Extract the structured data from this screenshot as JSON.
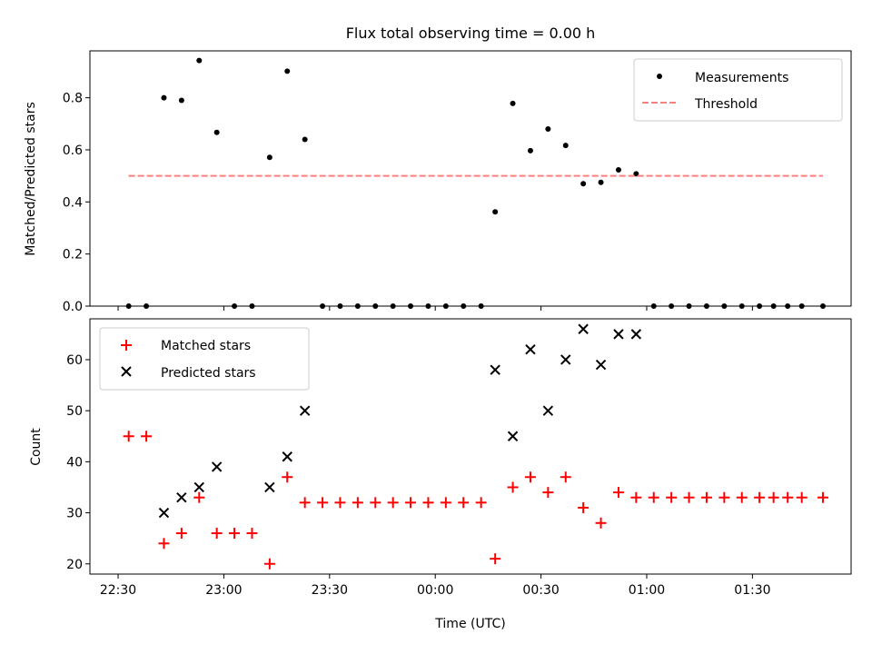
{
  "title": "Flux total observing time = 0.00 h",
  "chart_data": [
    {
      "type": "scatter",
      "ylabel": "Matched/Predicted stars",
      "ylim": [
        0,
        0.98
      ],
      "yticks": [
        0.0,
        0.2,
        0.4,
        0.6,
        0.8
      ],
      "ytick_labels": [
        "0.0",
        "0.2",
        "0.4",
        "0.6",
        "0.8"
      ],
      "legend_position": "upper-right",
      "series": [
        {
          "name": "Measurements",
          "marker": "dot",
          "color": "#000000",
          "x": [
            "22:33",
            "22:38",
            "22:43",
            "22:48",
            "22:53",
            "22:58",
            "23:03",
            "23:08",
            "23:13",
            "23:18",
            "23:23",
            "23:28",
            "23:33",
            "23:38",
            "23:43",
            "23:48",
            "23:53",
            "23:58",
            "00:03",
            "00:08",
            "00:13",
            "00:17",
            "00:22",
            "00:27",
            "00:32",
            "00:37",
            "00:42",
            "00:47",
            "00:52",
            "00:57",
            "01:02",
            "01:07",
            "01:12",
            "01:17",
            "01:22",
            "01:27",
            "01:32",
            "01:36",
            "01:40",
            "01:44",
            "01:50"
          ],
          "y": [
            0,
            0,
            0.8,
            0.79,
            0.943,
            0.667,
            0,
            0,
            0.571,
            0.902,
            0.64,
            0,
            0,
            0,
            0,
            0,
            0,
            0,
            0,
            0,
            0,
            0.362,
            0.778,
            0.597,
            0.68,
            0.617,
            0.47,
            0.475,
            0.523,
            0.508,
            0,
            0,
            0,
            0,
            0,
            0,
            0,
            0,
            0,
            0,
            0
          ]
        },
        {
          "name": "Threshold",
          "marker": "dashed-line",
          "color": "#ff7f7f",
          "x": [
            "22:33",
            "01:50"
          ],
          "y": [
            0.5,
            0.5
          ]
        }
      ]
    },
    {
      "type": "scatter",
      "xlabel": "Time (UTC)",
      "ylabel": "Count",
      "ylim": [
        18,
        68
      ],
      "yticks": [
        20,
        30,
        40,
        50,
        60
      ],
      "ytick_labels": [
        "20",
        "30",
        "40",
        "50",
        "60"
      ],
      "xlim": [
        "22:22",
        "01:58"
      ],
      "xticks": [
        "22:30",
        "23:00",
        "23:30",
        "00:00",
        "00:30",
        "01:00",
        "01:30"
      ],
      "xtick_labels": [
        "22:30",
        "23:00",
        "23:30",
        "00:00",
        "00:30",
        "01:00",
        "01:30"
      ],
      "legend_position": "upper-left",
      "series": [
        {
          "name": "Matched stars",
          "marker": "plus",
          "color": "#ff0000",
          "x": [
            "22:33",
            "22:38",
            "22:43",
            "22:48",
            "22:53",
            "22:58",
            "23:03",
            "23:08",
            "23:13",
            "23:18",
            "23:23",
            "23:28",
            "23:33",
            "23:38",
            "23:43",
            "23:48",
            "23:53",
            "23:58",
            "00:03",
            "00:08",
            "00:13",
            "00:17",
            "00:22",
            "00:27",
            "00:32",
            "00:37",
            "00:42",
            "00:47",
            "00:52",
            "00:57",
            "01:02",
            "01:07",
            "01:12",
            "01:17",
            "01:22",
            "01:27",
            "01:32",
            "01:36",
            "01:40",
            "01:44",
            "01:50"
          ],
          "y": [
            45,
            45,
            24,
            26,
            33,
            26,
            26,
            26,
            20,
            37,
            32,
            32,
            32,
            32,
            32,
            32,
            32,
            32,
            32,
            32,
            32,
            21,
            35,
            37,
            34,
            37,
            31,
            28,
            34,
            33,
            33,
            33,
            33,
            33,
            33,
            33,
            33,
            33,
            33,
            33,
            33
          ]
        },
        {
          "name": "Predicted stars",
          "marker": "x",
          "color": "#000000",
          "x": [
            "22:43",
            "22:48",
            "22:53",
            "22:58",
            "23:13",
            "23:18",
            "23:23",
            "00:17",
            "00:22",
            "00:27",
            "00:32",
            "00:37",
            "00:42",
            "00:47",
            "00:52",
            "00:57"
          ],
          "y": [
            30,
            33,
            35,
            39,
            35,
            41,
            50,
            58,
            45,
            62,
            50,
            60,
            66,
            59,
            65,
            65
          ]
        }
      ]
    }
  ]
}
